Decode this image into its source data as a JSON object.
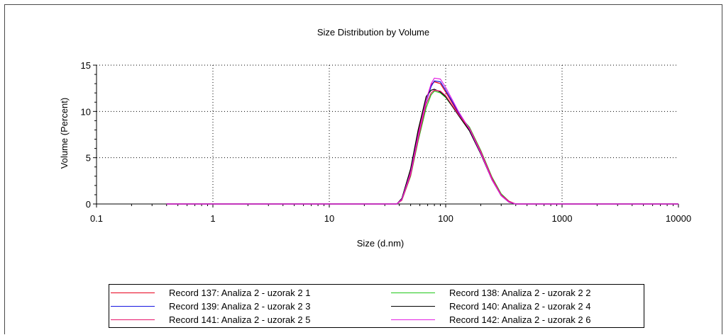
{
  "chart_data": {
    "type": "line",
    "title": "Size Distribution by Volume",
    "xlabel": "Size (d.nm)",
    "ylabel": "Volume (Percent)",
    "xscale": "log",
    "xlim": [
      0.1,
      10000
    ],
    "ylim": [
      0,
      15
    ],
    "x_ticks": [
      "0.1",
      "1",
      "10",
      "100",
      "1000",
      "10000"
    ],
    "y_ticks": [
      "0",
      "5",
      "10",
      "15"
    ],
    "grid": true,
    "legend_position": "bottom",
    "series": [
      {
        "name": "Record 137: Analiza 2 - uzorak  2  1",
        "color": "#e8001c",
        "x": [
          0.4,
          38,
          42,
          50,
          58,
          68,
          75,
          80,
          90,
          100,
          130,
          160,
          200,
          250,
          300,
          350,
          400,
          10000
        ],
        "y": [
          0,
          0,
          0.5,
          3.5,
          7.7,
          11.3,
          12.9,
          13.2,
          13.0,
          12.1,
          9.7,
          8.0,
          5.5,
          2.6,
          0.9,
          0.2,
          0,
          0
        ]
      },
      {
        "name": "Record 138: Analiza 2 - uzorak  2  2",
        "color": "#22c81a",
        "x": [
          0.4,
          38,
          42,
          50,
          58,
          68,
          75,
          80,
          90,
          100,
          130,
          160,
          200,
          250,
          300,
          350,
          400,
          10000
        ],
        "y": [
          0,
          0,
          0.4,
          3.0,
          6.8,
          10.4,
          11.8,
          12.2,
          12.0,
          11.5,
          9.6,
          8.3,
          5.8,
          2.9,
          1.1,
          0.3,
          0,
          0
        ]
      },
      {
        "name": "Record 139: Analiza 2 - uzorak  2  3",
        "color": "#1515e0",
        "x": [
          0.4,
          38,
          42,
          50,
          58,
          68,
          75,
          80,
          90,
          100,
          130,
          160,
          200,
          250,
          300,
          350,
          400,
          10000
        ],
        "y": [
          0,
          0,
          0.5,
          3.3,
          7.4,
          11.1,
          12.7,
          13.3,
          13.2,
          12.3,
          9.8,
          8.1,
          5.6,
          2.7,
          0.9,
          0.2,
          0,
          0
        ]
      },
      {
        "name": "Record 140: Analiza 2 - uzorak  2  4",
        "color": "#000000",
        "x": [
          0.4,
          38,
          42,
          50,
          58,
          68,
          75,
          80,
          90,
          100,
          130,
          160,
          200,
          250,
          300,
          350,
          400,
          10000
        ],
        "y": [
          0,
          0,
          0.6,
          3.8,
          8.0,
          11.6,
          12.3,
          12.4,
          12.1,
          11.6,
          9.5,
          7.9,
          5.4,
          2.6,
          0.9,
          0.2,
          0,
          0
        ]
      },
      {
        "name": "Record 141: Analiza 2 - uzorak  2  5",
        "color": "#e8136a",
        "x": [
          0.4,
          38,
          42,
          50,
          58,
          68,
          75,
          80,
          90,
          100,
          130,
          160,
          200,
          250,
          300,
          350,
          400,
          10000
        ],
        "y": [
          0,
          0,
          0.4,
          3.1,
          7.0,
          10.8,
          12.0,
          12.3,
          12.2,
          11.7,
          9.6,
          8.2,
          5.7,
          2.8,
          1.0,
          0.3,
          0,
          0
        ]
      },
      {
        "name": "Record 142: Analiza 2 - uzorak  2  6",
        "color": "#e21fe2",
        "x": [
          0.4,
          38,
          42,
          50,
          58,
          68,
          75,
          80,
          90,
          100,
          130,
          160,
          200,
          250,
          300,
          350,
          400,
          10000
        ],
        "y": [
          0,
          0,
          0.5,
          3.4,
          7.4,
          11.2,
          13.0,
          13.6,
          13.5,
          12.6,
          9.9,
          8.1,
          5.5,
          2.6,
          0.9,
          0.2,
          0,
          0
        ]
      }
    ]
  }
}
